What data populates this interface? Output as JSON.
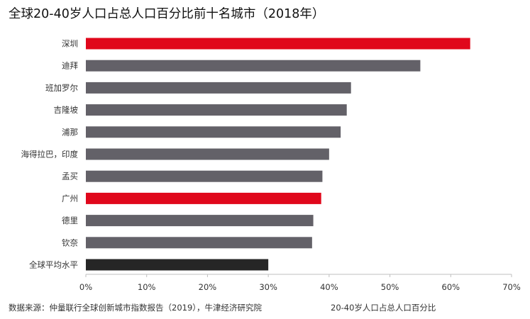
{
  "title": "全球20-40岁人口占总人口百分比前十名城市（2018年）",
  "source": "数据来源：仲量联行全球创新城市指数报告（2019），牛津经济研究院",
  "chart_data": {
    "type": "bar",
    "orientation": "horizontal",
    "categories": [
      "深圳",
      "迪拜",
      "班加罗尔",
      "吉隆坡",
      "浦那",
      "海得拉巴，印度",
      "孟买",
      "广州",
      "德里",
      "钦奈",
      "全球平均水平"
    ],
    "values": [
      63.2,
      55.0,
      43.6,
      42.9,
      41.9,
      40.0,
      38.9,
      38.7,
      37.4,
      37.2,
      30.0
    ],
    "bar_colors": [
      "#e0071b",
      "#636168",
      "#636168",
      "#636168",
      "#636168",
      "#636168",
      "#636168",
      "#e0071b",
      "#636168",
      "#636168",
      "#262626"
    ],
    "xlabel": "20-40岁人口占总人口百分比",
    "xlim": [
      0,
      70
    ],
    "x_ticks": [
      0,
      10,
      20,
      30,
      40,
      50,
      60,
      70
    ],
    "x_tick_labels": [
      "0%",
      "10%",
      "20%",
      "30%",
      "40%",
      "50%",
      "60%",
      "70%"
    ],
    "grid": false,
    "axis_color": "#bfbfbf"
  }
}
